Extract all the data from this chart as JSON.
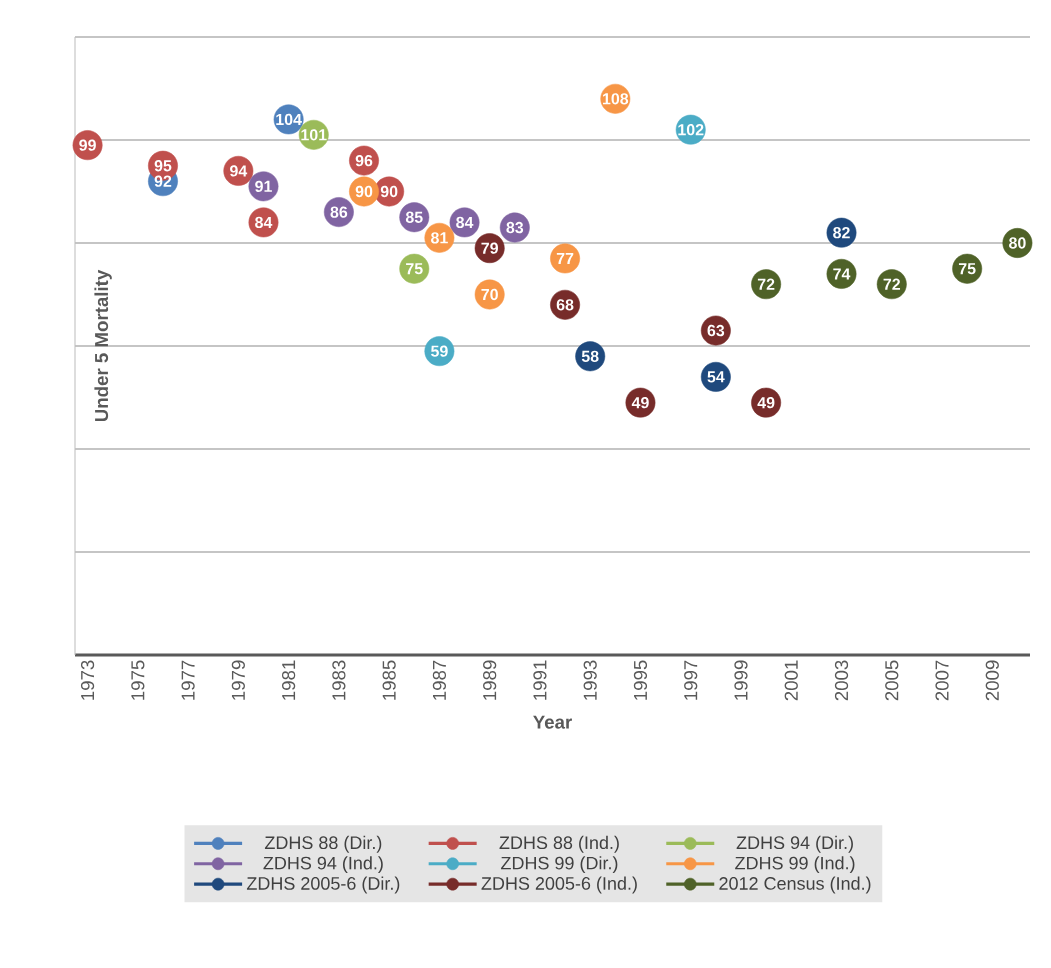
{
  "chart_data": {
    "type": "scatter",
    "xlabel": "Year",
    "ylabel": "Under 5 Mortality",
    "xlim": [
      1972.5,
      2010.5
    ],
    "xticks": [
      1973,
      1975,
      1977,
      1979,
      1981,
      1983,
      1985,
      1987,
      1989,
      1991,
      1993,
      1995,
      1997,
      1999,
      2001,
      2003,
      2005,
      2007,
      2009
    ],
    "ylim": [
      0,
      120
    ],
    "yticks": [
      {
        "value": 0,
        "label": null
      },
      {
        "value": 20,
        "label": null
      },
      {
        "value": 40,
        "label": null
      },
      {
        "value": 60,
        "label": null
      },
      {
        "value": 80,
        "label": null
      },
      {
        "value": 100,
        "label": null
      },
      {
        "value": 120,
        "label": null
      }
    ],
    "tick_labels": "x",
    "grid": "y",
    "legend": "bottom",
    "marker": "circle",
    "data_labels": true,
    "series": [
      {
        "name": "ZDHS 88 (Dir.)",
        "color": "#4f81bd",
        "x": [
          1976,
          1981
        ],
        "values": [
          92,
          104
        ]
      },
      {
        "name": "ZDHS 88 (Ind.)",
        "color": "#c0504d",
        "x": [
          1973,
          1976,
          1979,
          1980,
          1984,
          1985
        ],
        "values": [
          99,
          95,
          94,
          84,
          96,
          90
        ]
      },
      {
        "name": "ZDHS 94 (Dir.)",
        "color": "#9bbb59",
        "x": [
          1982,
          1986
        ],
        "values": [
          101,
          75
        ]
      },
      {
        "name": "ZDHS 94 (Ind.)",
        "color": "#8064a2",
        "x": [
          1980,
          1983,
          1986,
          1988,
          1990
        ],
        "values": [
          91,
          86,
          85,
          84,
          83
        ]
      },
      {
        "name": "ZDHS 99 (Dir.)",
        "color": "#4bacc6",
        "x": [
          1987,
          1997
        ],
        "values": [
          59,
          102
        ]
      },
      {
        "name": "ZDHS 99 (Ind.)",
        "color": "#f79646",
        "x": [
          1984,
          1987,
          1989,
          1992,
          1994
        ],
        "values": [
          90,
          81,
          70,
          77,
          108
        ]
      },
      {
        "name": "ZDHS 2005-6 (Dir.)",
        "color": "#1f497d",
        "x": [
          1993,
          1998,
          2003
        ],
        "values": [
          58,
          54,
          82
        ]
      },
      {
        "name": "ZDHS 2005-6 (Ind.)",
        "color": "#772c2a",
        "x": [
          1989,
          1992,
          1995,
          1998,
          2000
        ],
        "values": [
          79,
          68,
          49,
          63,
          49
        ]
      },
      {
        "name": "2012 Census (Ind.)",
        "color": "#4f6228",
        "x": [
          2000,
          2003,
          2005,
          2008,
          2010
        ],
        "values": [
          72,
          74,
          72,
          75,
          80
        ]
      }
    ]
  }
}
